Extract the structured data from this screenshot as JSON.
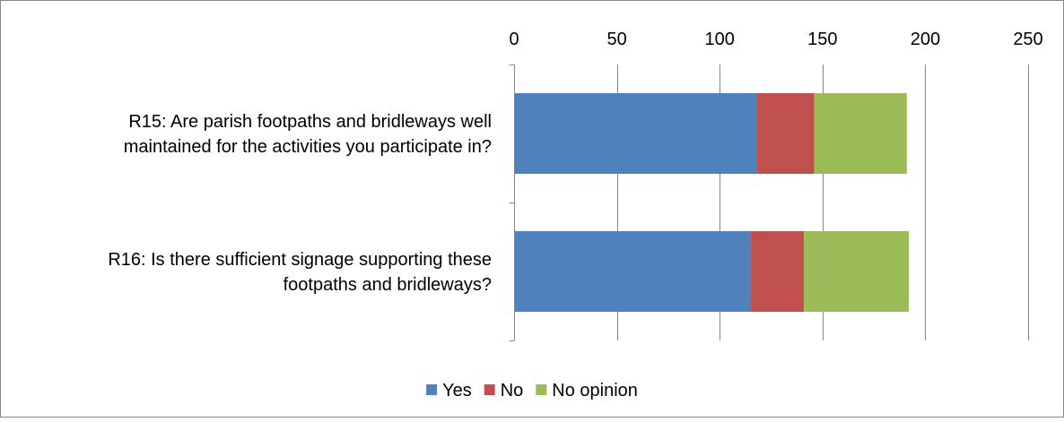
{
  "chart_data": {
    "type": "bar",
    "orientation": "horizontal",
    "stacked": true,
    "categories": [
      [
        "R15:  Are parish footpaths and bridleways well",
        "maintained for the activities you participate in?"
      ],
      [
        "R16:  Is there sufficient signage supporting these",
        "footpaths and bridleways?"
      ]
    ],
    "series": [
      {
        "name": "Yes",
        "color": "#4F81BD",
        "values": [
          118,
          115
        ]
      },
      {
        "name": "No",
        "color": "#C0504D",
        "values": [
          28,
          26
        ]
      },
      {
        "name": "No opinion",
        "color": "#9BBB59",
        "values": [
          45,
          51
        ]
      }
    ],
    "xlim": [
      0,
      250
    ],
    "xticks": [
      0,
      50,
      100,
      150,
      200,
      250
    ],
    "x_axis_position": "top",
    "grid": true,
    "legend": "bottom"
  }
}
